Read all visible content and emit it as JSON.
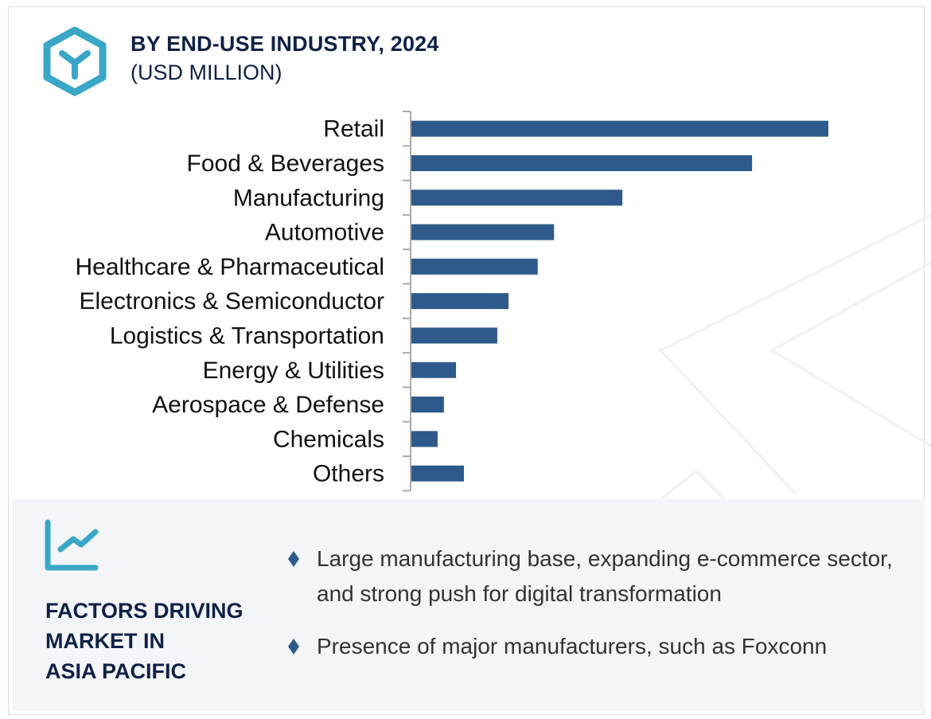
{
  "header": {
    "title": "BY END-USE INDUSTRY, 2024",
    "subtitle": "(USD MILLION)",
    "logo_icon": "hexagon-y-logo-icon"
  },
  "colors": {
    "bar": "#2d5a8a",
    "title": "#0f2147",
    "accent": "#3aa7c6",
    "panel": "#f3f5f9"
  },
  "chart_data": {
    "type": "bar",
    "orientation": "horizontal",
    "title": "BY END-USE INDUSTRY, 2024",
    "subtitle": "(USD MILLION)",
    "categories": [
      "Retail",
      "Food & Beverages",
      "Manufacturing",
      "Automotive",
      "Healthcare & Pharmaceutical",
      "Electronics & Semiconductor",
      "Logistics & Transportation",
      "Energy & Utilities",
      "Aerospace & Defense",
      "Chemicals",
      "Others"
    ],
    "values": [
      100,
      81.7,
      50.6,
      34.2,
      30.3,
      23.3,
      20.6,
      10.7,
      7.8,
      6.3,
      12.6
    ],
    "value_axis_shown": false,
    "grid": false
  },
  "factors": {
    "icon": "line-chart-icon",
    "title_lines": [
      "FACTORS DRIVING",
      "MARKET IN",
      "ASIA PACIFIC"
    ],
    "bullets": [
      "Large manufacturing base, expanding e-commerce sector, and strong push for digital transformation",
      "Presence of major manufacturers, such as Foxconn"
    ]
  }
}
